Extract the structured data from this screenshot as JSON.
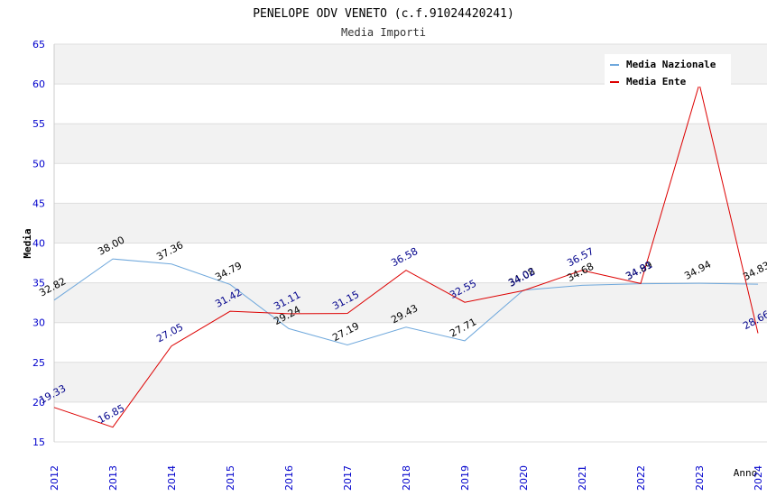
{
  "chart_data": {
    "type": "line",
    "title": "PENELOPE ODV VENETO (c.f.91024420241)",
    "subtitle": "Media Importi",
    "xlabel": "Anno",
    "ylabel": "Media",
    "ylim": [
      15,
      65
    ],
    "yticks": [
      "15",
      "20",
      "25",
      "30",
      "35",
      "40",
      "45",
      "50",
      "55",
      "60",
      "65"
    ],
    "categories": [
      "2012",
      "2013",
      "2014",
      "2015",
      "2016",
      "2017",
      "2018",
      "2019",
      "2020",
      "2021",
      "2022",
      "2023",
      "2024"
    ],
    "series": [
      {
        "name": "Media Nazionale",
        "color": "#6fa8dc",
        "label_color": "#000000",
        "values": [
          32.82,
          38.0,
          37.36,
          34.79,
          29.24,
          27.19,
          29.43,
          27.71,
          34.08,
          34.68,
          34.89,
          34.94,
          34.83
        ],
        "labels": [
          "32.82",
          "38.00",
          "37.36",
          "34.79",
          "29.24",
          "27.19",
          "29.43",
          "27.71",
          "34.08",
          "34.68",
          "34.89",
          "34.94",
          "34.83"
        ]
      },
      {
        "name": "Media Ente",
        "color": "#dd0000",
        "label_color": "#00008b",
        "values": [
          19.33,
          16.85,
          27.05,
          31.42,
          31.11,
          31.15,
          36.58,
          32.55,
          34.02,
          36.57,
          34.91,
          60.0,
          28.66
        ],
        "labels": [
          "19.33",
          "16.85",
          "27.05",
          "31.42",
          "31.11",
          "31.15",
          "36.58",
          "32.55",
          "34.02",
          "36.57",
          "34.91",
          "",
          "28.66"
        ]
      }
    ],
    "legend_position": "top-right",
    "grid": true
  }
}
